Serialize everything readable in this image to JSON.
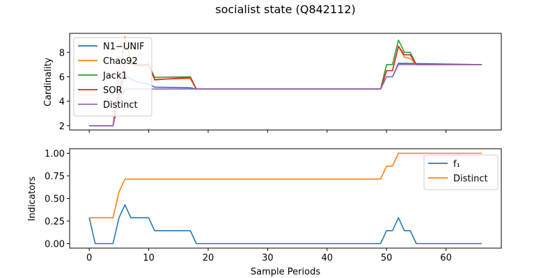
{
  "figure": {
    "title": "socialist state (Q842112)"
  },
  "chart_data": [
    {
      "type": "line",
      "ylabel": "Cardinality",
      "xlabel": "",
      "xlim": [
        -3.3,
        69.3
      ],
      "ylim": [
        1.65,
        9.55
      ],
      "xticks": [
        0,
        10,
        20,
        30,
        40,
        50,
        60
      ],
      "yticks": [
        2,
        4,
        6,
        8
      ],
      "legend_position": "upper-left",
      "series": [
        {
          "name": "N1−UNIF",
          "color": "#1f77b4",
          "points": [
            [
              0,
              2
            ],
            [
              4,
              2
            ],
            [
              5,
              4.5
            ],
            [
              6,
              6.2
            ],
            [
              7,
              5.8
            ],
            [
              8,
              5.6
            ],
            [
              10,
              5.4
            ],
            [
              11,
              5.15
            ],
            [
              17,
              5.1
            ],
            [
              18,
              5
            ],
            [
              49,
              5
            ],
            [
              50,
              6
            ],
            [
              51,
              6
            ],
            [
              52,
              7.1
            ],
            [
              66,
              7
            ]
          ]
        },
        {
          "name": "Chao92",
          "color": "#ff7f0e",
          "points": [
            [
              0,
              2
            ],
            [
              4,
              2
            ],
            [
              5,
              6
            ],
            [
              6,
              9.3
            ],
            [
              7,
              7.2
            ],
            [
              8,
              6.95
            ],
            [
              9,
              6.9
            ],
            [
              10,
              6.95
            ],
            [
              11,
              5.8
            ],
            [
              17,
              5.85
            ],
            [
              18,
              5
            ],
            [
              49,
              5
            ],
            [
              50,
              6.5
            ],
            [
              51,
              6.5
            ],
            [
              52,
              8.5
            ],
            [
              53,
              7.6
            ],
            [
              54,
              7.5
            ],
            [
              55,
              7
            ],
            [
              66,
              7
            ]
          ]
        },
        {
          "name": "Jack1",
          "color": "#2ca02c",
          "points": [
            [
              0,
              2
            ],
            [
              4,
              2
            ],
            [
              5,
              4.6
            ],
            [
              6,
              7.2
            ],
            [
              7,
              7.15
            ],
            [
              8,
              7
            ],
            [
              9,
              7
            ],
            [
              10,
              7
            ],
            [
              11,
              5.95
            ],
            [
              17,
              6
            ],
            [
              18,
              5
            ],
            [
              49,
              5
            ],
            [
              50,
              7
            ],
            [
              51,
              7
            ],
            [
              52,
              9
            ],
            [
              53,
              8
            ],
            [
              54,
              8
            ],
            [
              55,
              7
            ],
            [
              66,
              7
            ]
          ]
        },
        {
          "name": "SOR",
          "color": "#d62728",
          "points": [
            [
              0,
              2
            ],
            [
              4,
              2
            ],
            [
              5,
              4.7
            ],
            [
              6,
              7.1
            ],
            [
              7,
              7.05
            ],
            [
              8,
              6.95
            ],
            [
              9,
              6.9
            ],
            [
              10,
              7.05
            ],
            [
              11,
              5.75
            ],
            [
              17,
              5.95
            ],
            [
              18,
              5
            ],
            [
              49,
              5
            ],
            [
              50,
              6.5
            ],
            [
              51,
              6.5
            ],
            [
              52,
              8.5
            ],
            [
              53,
              7.8
            ],
            [
              54,
              7.8
            ],
            [
              55,
              7
            ],
            [
              66,
              7
            ]
          ]
        },
        {
          "name": "Distinct",
          "color": "#9467bd",
          "points": [
            [
              0,
              2
            ],
            [
              4,
              2
            ],
            [
              5,
              4
            ],
            [
              6,
              5
            ],
            [
              49,
              5
            ],
            [
              50,
              6
            ],
            [
              51,
              6
            ],
            [
              52,
              7
            ],
            [
              66,
              7
            ]
          ]
        }
      ]
    },
    {
      "type": "line",
      "ylabel": "Indicators",
      "xlabel": "Sample Periods",
      "xlim": [
        -3.3,
        69.3
      ],
      "ylim": [
        -0.05,
        1.05
      ],
      "xticks": [
        0,
        10,
        20,
        30,
        40,
        50,
        60
      ],
      "yticks": [
        0.0,
        0.25,
        0.5,
        0.75,
        1.0
      ],
      "ytick_labels": [
        "0.00",
        "0.25",
        "0.50",
        "0.75",
        "1.00"
      ],
      "legend_position": "upper-right",
      "series": [
        {
          "name": "f₁",
          "color": "#1f77b4",
          "points": [
            [
              0,
              0.286
            ],
            [
              1,
              0
            ],
            [
              4,
              0
            ],
            [
              5,
              0.286
            ],
            [
              6,
              0.429
            ],
            [
              7,
              0.286
            ],
            [
              10,
              0.286
            ],
            [
              11,
              0.143
            ],
            [
              17,
              0.143
            ],
            [
              18,
              0
            ],
            [
              49,
              0
            ],
            [
              50,
              0.143
            ],
            [
              51,
              0.143
            ],
            [
              52,
              0.286
            ],
            [
              53,
              0.143
            ],
            [
              54,
              0.143
            ],
            [
              55,
              0
            ],
            [
              66,
              0
            ]
          ]
        },
        {
          "name": "Distinct",
          "color": "#ff7f0e",
          "points": [
            [
              0,
              0.286
            ],
            [
              4,
              0.286
            ],
            [
              5,
              0.571
            ],
            [
              6,
              0.714
            ],
            [
              49,
              0.714
            ],
            [
              50,
              0.857
            ],
            [
              51,
              0.857
            ],
            [
              52,
              1
            ],
            [
              66,
              1
            ]
          ]
        }
      ]
    }
  ]
}
